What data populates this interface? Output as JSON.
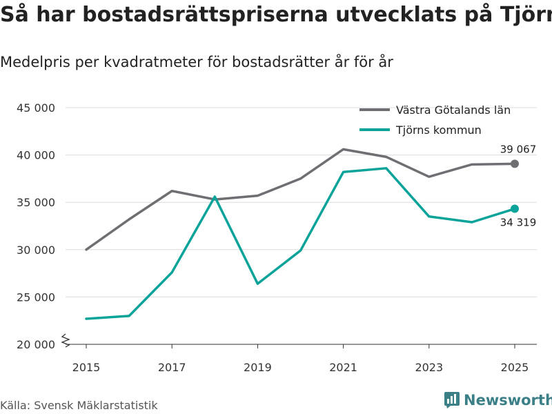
{
  "header": {
    "title": "Så har bostadsrättspriserna utvecklats på Tjörn",
    "subtitle": "Medelpris per kvadratmeter för bostadsrätter år för år"
  },
  "footer": {
    "source": "Källa: Svensk Mäklarstatistik",
    "brand": "Newsworthy"
  },
  "colors": {
    "series_gray": "#6e6e73",
    "series_teal": "#0aa39a",
    "brand": "#3b7f87"
  },
  "chart_data": {
    "type": "line",
    "title": "Så har bostadsrättspriserna utvecklats på Tjörn",
    "subtitle": "Medelpris per kvadratmeter för bostadsrätter år för år",
    "xlabel": "",
    "ylabel": "",
    "x": [
      2015,
      2016,
      2017,
      2018,
      2019,
      2020,
      2021,
      2022,
      2023,
      2024,
      2025
    ],
    "xticks": [
      "2015",
      "2017",
      "2019",
      "2021",
      "2023",
      "2025"
    ],
    "ylim": [
      20000,
      45000
    ],
    "yticks": [
      20000,
      25000,
      30000,
      35000,
      40000,
      45000
    ],
    "ytick_labels": [
      "20 000",
      "25 000",
      "30 000",
      "35 000",
      "40 000",
      "45 000"
    ],
    "grid": true,
    "legend_position": "top-right",
    "series": [
      {
        "name": "Västra Götalands län",
        "color": "#6e6e73",
        "values": [
          30000,
          33200,
          36200,
          35300,
          35700,
          37500,
          40600,
          39800,
          37700,
          39000,
          39067
        ],
        "end_label": "39 067"
      },
      {
        "name": "Tjörns kommun",
        "color": "#0aa39a",
        "values": [
          22700,
          23000,
          27600,
          35600,
          26400,
          29900,
          38200,
          38600,
          33500,
          32900,
          34319
        ],
        "end_label": "34 319"
      }
    ]
  }
}
